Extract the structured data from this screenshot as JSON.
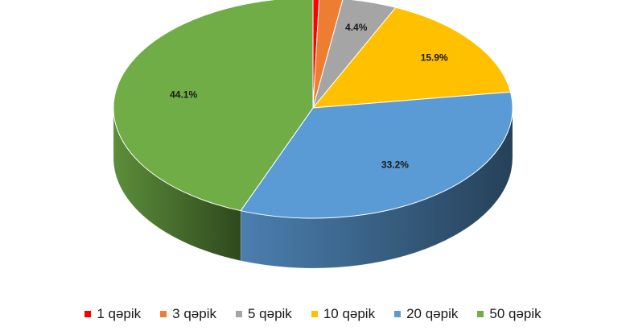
{
  "chart_data": {
    "type": "pie",
    "style": "3d",
    "title": "",
    "categories": [
      "1 qəpik",
      "3 qəpik",
      "5 qəpik",
      "10 qəpik",
      "20 qəpik",
      "50 qəpik"
    ],
    "values": [
      0.5,
      1.9,
      4.4,
      15.9,
      33.2,
      44.1
    ],
    "data_labels": [
      "0.5%",
      "1.9%",
      "4.4%",
      "15.9%",
      "33.2%",
      "44.1%"
    ],
    "colors": [
      "#ff0000",
      "#ed7d31",
      "#a5a5a5",
      "#ffc000",
      "#5b9bd5",
      "#70ad47"
    ],
    "legend_position": "bottom"
  }
}
